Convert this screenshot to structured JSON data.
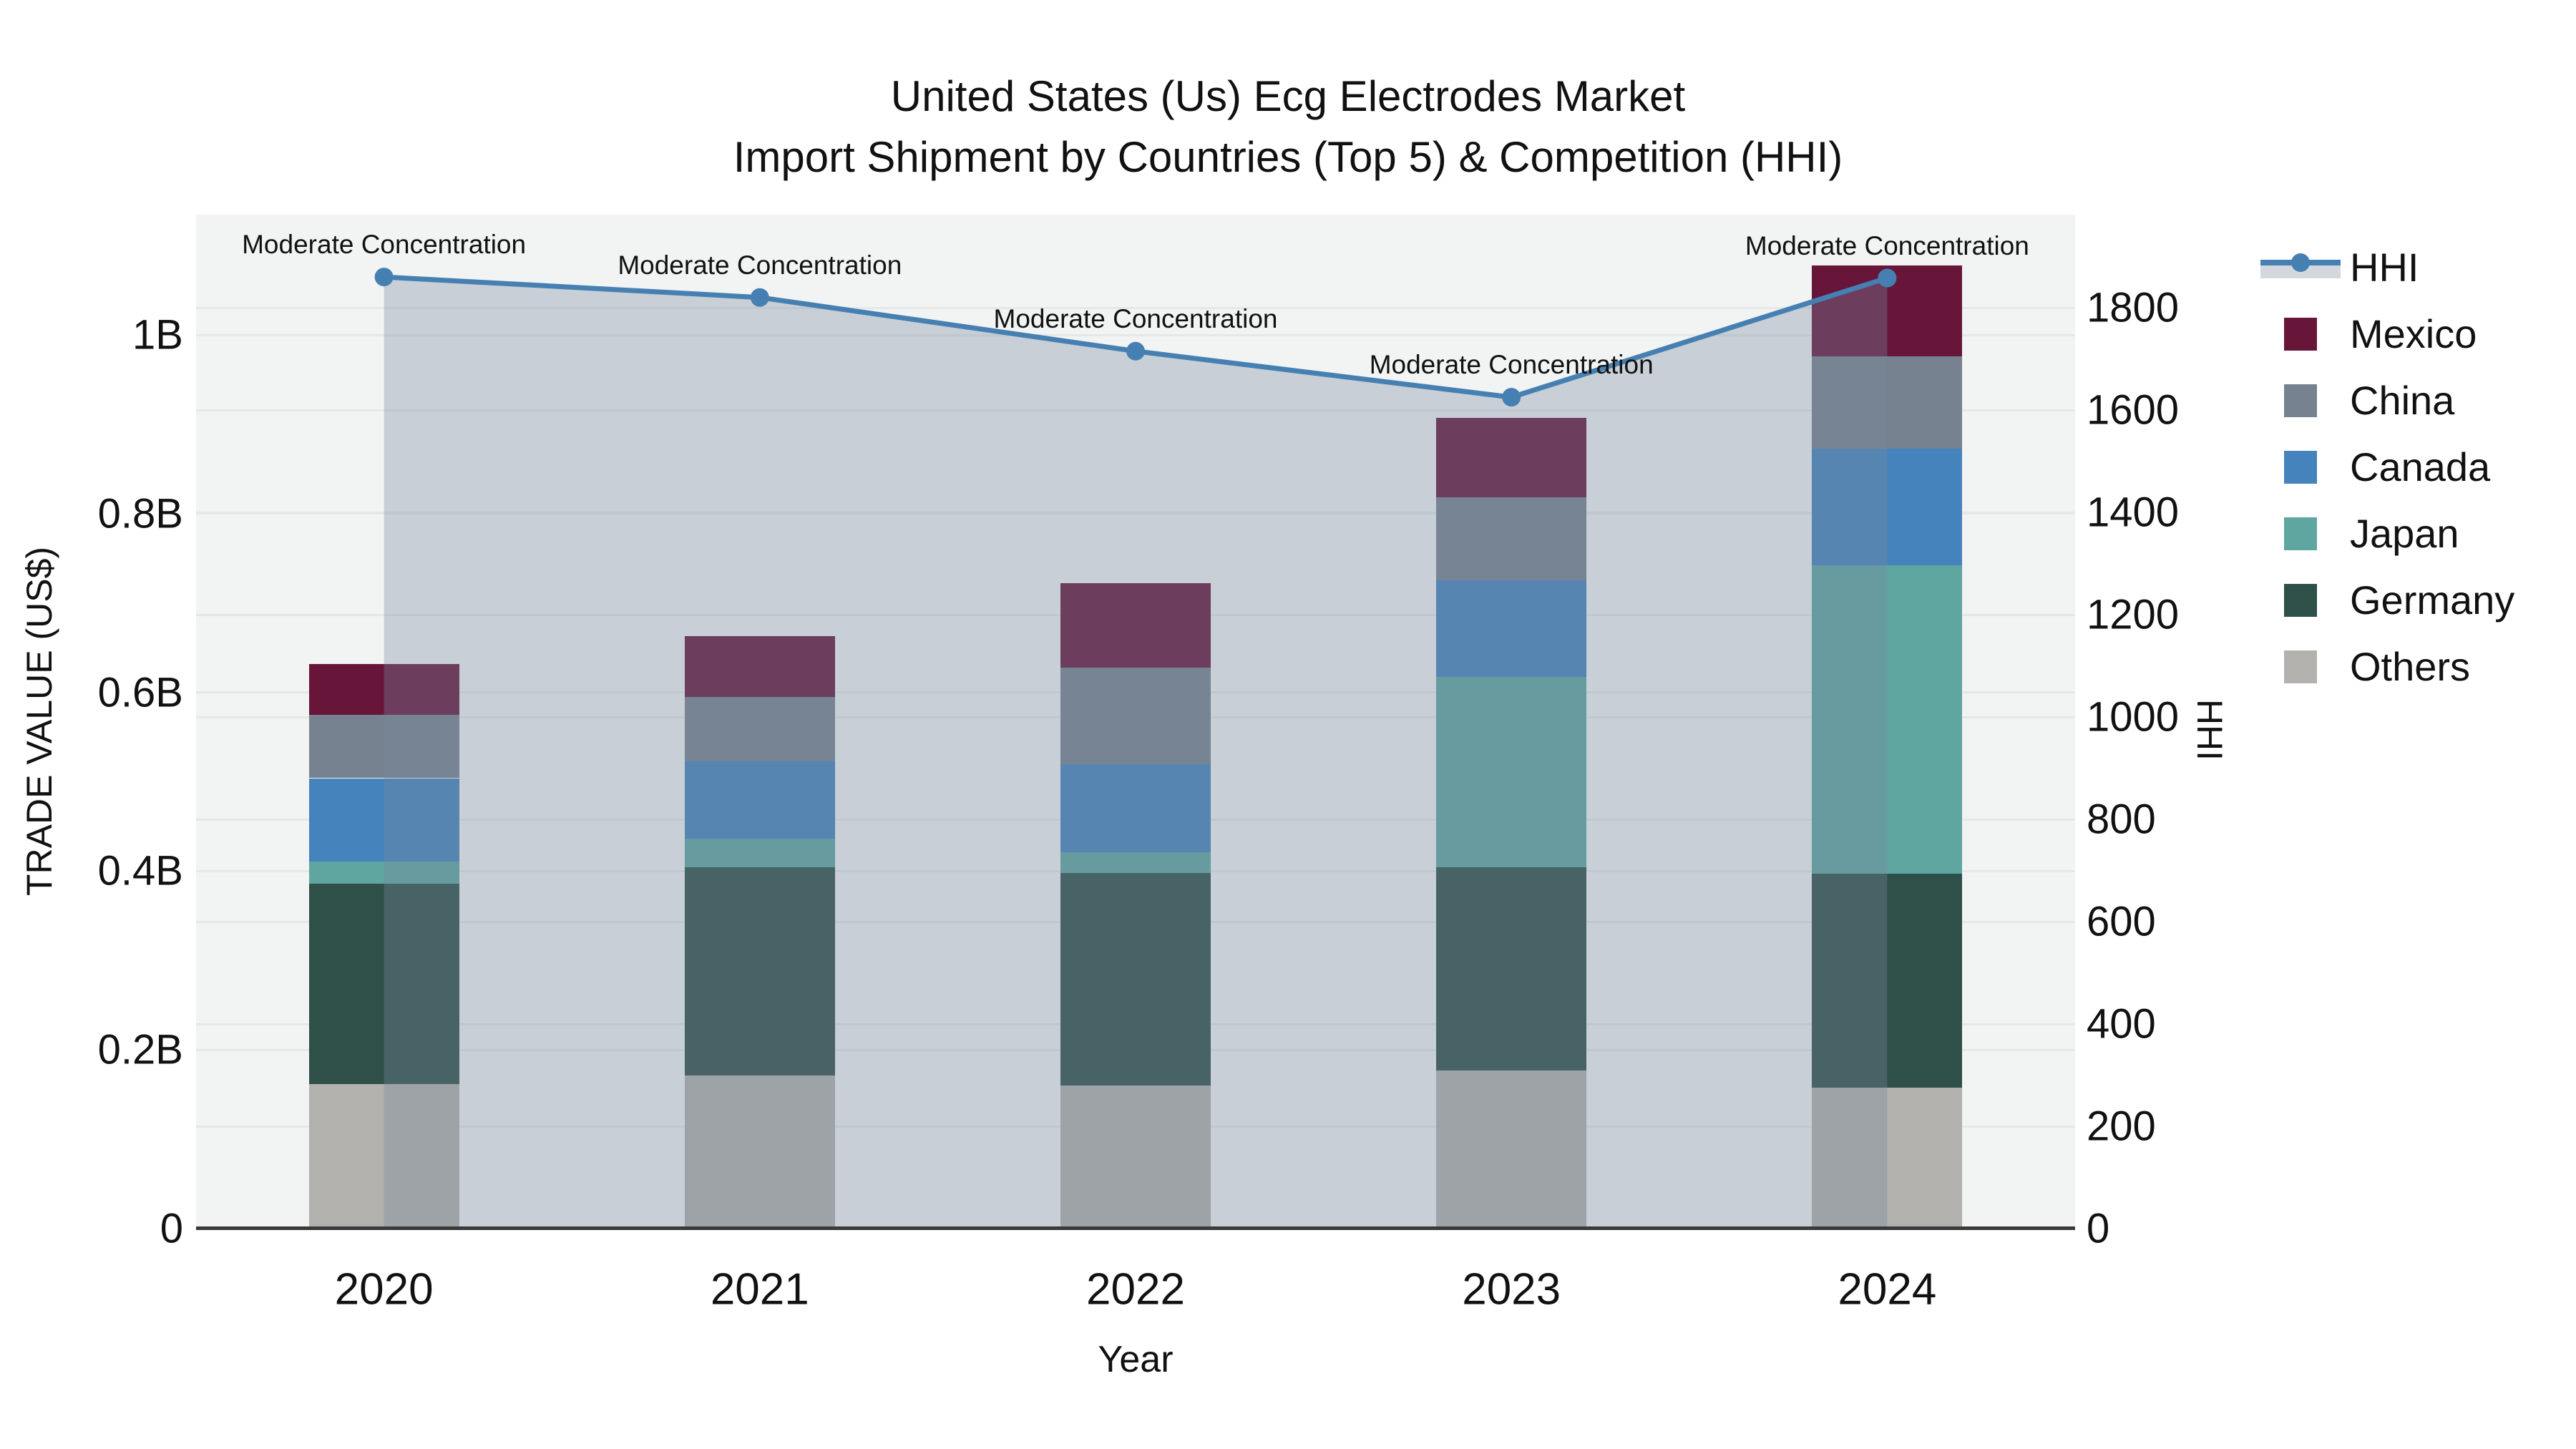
{
  "title": {
    "line1": "United States (Us) Ecg Electrodes Market",
    "line2": "Import Shipment by Countries (Top 5) & Competition (HHI)"
  },
  "axes": {
    "x": {
      "title": "Year",
      "ticks": [
        "2020",
        "2021",
        "2022",
        "2023",
        "2024"
      ]
    },
    "y_left": {
      "title": "TRADE VALUE (US$)",
      "ticks": [
        {
          "v": 0,
          "label": "0"
        },
        {
          "v": 0.2,
          "label": "0.2B"
        },
        {
          "v": 0.4,
          "label": "0.4B"
        },
        {
          "v": 0.6,
          "label": "0.6B"
        },
        {
          "v": 0.8,
          "label": "0.8B"
        },
        {
          "v": 1.0,
          "label": "1B"
        }
      ]
    },
    "y_right": {
      "title": "HHI",
      "ticks": [
        {
          "v": 0,
          "label": "0"
        },
        {
          "v": 200,
          "label": "200"
        },
        {
          "v": 400,
          "label": "400"
        },
        {
          "v": 600,
          "label": "600"
        },
        {
          "v": 800,
          "label": "800"
        },
        {
          "v": 1000,
          "label": "1000"
        },
        {
          "v": 1200,
          "label": "1200"
        },
        {
          "v": 1400,
          "label": "1400"
        },
        {
          "v": 1600,
          "label": "1600"
        },
        {
          "v": 1800,
          "label": "1800"
        }
      ]
    }
  },
  "legend": {
    "items": [
      {
        "label": "HHI",
        "type": "line"
      },
      {
        "label": "Mexico",
        "type": "swatch"
      },
      {
        "label": "China",
        "type": "swatch"
      },
      {
        "label": "Canada",
        "type": "swatch"
      },
      {
        "label": "Japan",
        "type": "swatch"
      },
      {
        "label": "Germany",
        "type": "swatch"
      },
      {
        "label": "Others",
        "type": "swatch"
      }
    ]
  },
  "chart_data": {
    "type": "combo",
    "bar_mode": "stacked",
    "x": [
      2020,
      2021,
      2022,
      2023,
      2024
    ],
    "xlabel": "Year",
    "ylabel_left": "TRADE VALUE (US$)",
    "ylabel_right": "HHI",
    "ylim_left_billions": [
      0,
      1.134
    ],
    "ylim_right": [
      0,
      1982
    ],
    "values_unit": "billion US$",
    "bar_series": [
      {
        "name": "Others",
        "color": "#B2B1AE",
        "values": [
          0.162,
          0.171,
          0.16,
          0.177,
          0.158
        ]
      },
      {
        "name": "Germany",
        "color": "#2F4F49",
        "values": [
          0.224,
          0.233,
          0.238,
          0.227,
          0.239
        ]
      },
      {
        "name": "Japan",
        "color": "#5FA5A0",
        "values": [
          0.025,
          0.032,
          0.023,
          0.213,
          0.345
        ]
      },
      {
        "name": "Canada",
        "color": "#4583BD",
        "values": [
          0.093,
          0.087,
          0.099,
          0.108,
          0.131
        ]
      },
      {
        "name": "China",
        "color": "#76828F",
        "values": [
          0.071,
          0.072,
          0.108,
          0.093,
          0.103
        ]
      },
      {
        "name": "Mexico",
        "color": "#67163A",
        "values": [
          0.057,
          0.068,
          0.094,
          0.089,
          0.102
        ]
      }
    ],
    "bar_totals": [
      0.632,
      0.663,
      0.722,
      0.907,
      1.078
    ],
    "line_series": {
      "name": "HHI",
      "color": "#4680B2",
      "fill_color": "rgba(119,138,157,0.34)",
      "values": [
        1860,
        1820,
        1715,
        1625,
        1858
      ]
    },
    "point_annotations": [
      "Moderate Concentration",
      "Moderate Concentration",
      "Moderate Concentration",
      "Moderate Concentration",
      "Moderate Concentration"
    ],
    "legend_position": "right",
    "grid": true
  },
  "colors": {
    "plot_bg": "#F2F3F3",
    "grid": "#E6E8E8",
    "axis_line": "#3A3A3A",
    "text": "#111111"
  }
}
